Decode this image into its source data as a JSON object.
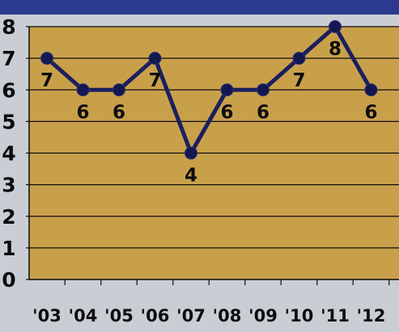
{
  "chart_data": {
    "type": "line",
    "title": "",
    "xlabel": "",
    "ylabel": "",
    "categories": [
      "'03",
      "'04",
      "'05",
      "'06",
      "'07",
      "'08",
      "'09",
      "'10",
      "'11",
      "'12"
    ],
    "series": [
      {
        "values": [
          7,
          6,
          6,
          7,
          4,
          6,
          6,
          7,
          8,
          6
        ]
      }
    ],
    "data_labels": [
      "7",
      "6",
      "6",
      "7",
      "4",
      "6",
      "6",
      "7",
      "8",
      "6"
    ],
    "yticks": [
      0,
      1,
      2,
      3,
      4,
      5,
      6,
      7,
      8
    ],
    "ylim": [
      0,
      8
    ],
    "grid": true,
    "legend": "none",
    "colors": {
      "page_background": "#c9cdd4",
      "top_band": "#2b3a8f",
      "plot_area": "#c9a04a",
      "line": "#1b1f5e",
      "marker": "#141850",
      "gridline": "#0d0d0d",
      "text": "#0d0d0d"
    }
  }
}
